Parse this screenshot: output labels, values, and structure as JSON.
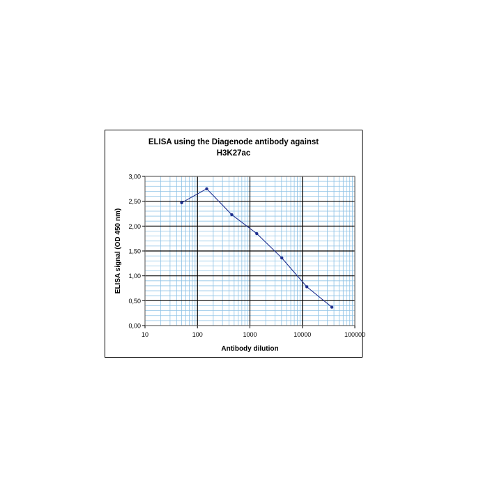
{
  "chart_data": {
    "type": "line",
    "title": [
      "ELISA using the Diagenode antibody against",
      "H3K27ac"
    ],
    "xlabel": "Antibody dilution",
    "ylabel": "ELISA signal (OD 450 nm)",
    "xscale": "log",
    "xlim": [
      10,
      100000
    ],
    "ylim": [
      0,
      3
    ],
    "xticks": [
      "10",
      "100",
      "1000",
      "10000",
      "100000"
    ],
    "yticks": [
      "0,00",
      "0,50",
      "1,00",
      "1,50",
      "2,00",
      "2,50",
      "3,00"
    ],
    "grid": true,
    "legend": "none",
    "series": [
      {
        "color": "#1f2f8f",
        "x": [
          50,
          150,
          450,
          1350,
          4050,
          12150,
          36450
        ],
        "y": [
          2.47,
          2.75,
          2.23,
          1.85,
          1.36,
          0.78,
          0.37
        ]
      }
    ]
  }
}
